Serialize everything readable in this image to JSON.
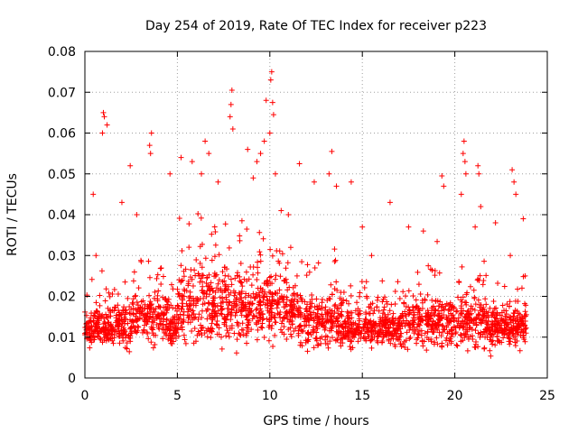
{
  "chart_data": {
    "type": "scatter",
    "title": "Day 254 of 2019, Rate Of TEC Index for receiver p223",
    "xlabel": "GPS time / hours",
    "ylabel": "ROTI / TECUs",
    "xlim": [
      0,
      25
    ],
    "ylim": [
      0,
      0.08
    ],
    "x_ticks": [
      0,
      5,
      10,
      15,
      20,
      25
    ],
    "x_tick_labels": [
      "0",
      "5",
      "10",
      "15",
      "20",
      "25"
    ],
    "y_ticks": [
      0,
      0.01,
      0.02,
      0.03,
      0.04,
      0.05,
      0.06,
      0.07,
      0.08
    ],
    "y_tick_labels": [
      "0",
      "0.01",
      "0.02",
      "0.03",
      "0.04",
      "0.05",
      "0.06",
      "0.07",
      "0.08"
    ],
    "grid": true,
    "marker": "+",
    "color": "#ff0000",
    "series": [
      {
        "name": "ROTI",
        "data_extent_hours": [
          0,
          23.9
        ],
        "typical_range": [
          0.004,
          0.025
        ],
        "max_value": 0.075,
        "points": [
          [
            1.0,
            0.065
          ],
          [
            1.05,
            0.064
          ],
          [
            1.2,
            0.062
          ],
          [
            0.95,
            0.06
          ],
          [
            0.45,
            0.045
          ],
          [
            0.6,
            0.03
          ],
          [
            3.6,
            0.06
          ],
          [
            3.5,
            0.057
          ],
          [
            3.55,
            0.055
          ],
          [
            2.45,
            0.052
          ],
          [
            4.6,
            0.05
          ],
          [
            2.0,
            0.043
          ],
          [
            2.8,
            0.04
          ],
          [
            5.2,
            0.054
          ],
          [
            6.5,
            0.058
          ],
          [
            6.7,
            0.055
          ],
          [
            5.8,
            0.053
          ],
          [
            6.3,
            0.05
          ],
          [
            7.2,
            0.048
          ],
          [
            7.95,
            0.0705
          ],
          [
            7.9,
            0.067
          ],
          [
            7.85,
            0.064
          ],
          [
            8.0,
            0.061
          ],
          [
            8.8,
            0.056
          ],
          [
            9.5,
            0.055
          ],
          [
            9.7,
            0.058
          ],
          [
            9.3,
            0.053
          ],
          [
            9.1,
            0.049
          ],
          [
            9.8,
            0.068
          ],
          [
            10.1,
            0.075
          ],
          [
            10.05,
            0.073
          ],
          [
            10.15,
            0.0675
          ],
          [
            10.2,
            0.0645
          ],
          [
            10.0,
            0.06
          ],
          [
            10.3,
            0.05
          ],
          [
            11.6,
            0.0525
          ],
          [
            11.0,
            0.04
          ],
          [
            12.4,
            0.048
          ],
          [
            13.35,
            0.0555
          ],
          [
            13.2,
            0.05
          ],
          [
            13.6,
            0.047
          ],
          [
            14.4,
            0.048
          ],
          [
            15.0,
            0.037
          ],
          [
            15.5,
            0.03
          ],
          [
            16.5,
            0.043
          ],
          [
            17.5,
            0.037
          ],
          [
            18.3,
            0.036
          ],
          [
            19.3,
            0.0495
          ],
          [
            19.4,
            0.047
          ],
          [
            20.5,
            0.058
          ],
          [
            20.45,
            0.055
          ],
          [
            20.55,
            0.053
          ],
          [
            20.6,
            0.05
          ],
          [
            20.35,
            0.045
          ],
          [
            21.3,
            0.05
          ],
          [
            21.25,
            0.052
          ],
          [
            21.1,
            0.037
          ],
          [
            21.4,
            0.042
          ],
          [
            22.2,
            0.038
          ],
          [
            23.1,
            0.051
          ],
          [
            23.2,
            0.048
          ],
          [
            23.3,
            0.045
          ],
          [
            23.7,
            0.039
          ],
          [
            23.8,
            0.025
          ],
          [
            23.0,
            0.03
          ]
        ]
      }
    ]
  }
}
